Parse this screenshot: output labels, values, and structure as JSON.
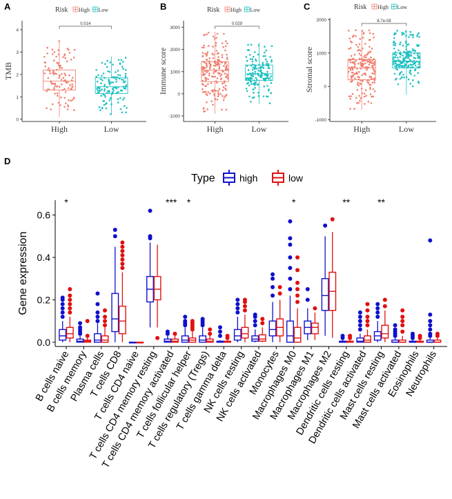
{
  "chart_data": [
    {
      "panel": "A",
      "type": "box",
      "legend_title": "Risk",
      "legend_items": [
        "High",
        "Low"
      ],
      "ylabel": "TMB",
      "categories": [
        "High",
        "Low"
      ],
      "ylim": [
        -0.1,
        4.4
      ],
      "yticks": [
        "0",
        "1",
        "2",
        "3",
        "4"
      ],
      "ytick_values": [
        0,
        1,
        2,
        3,
        4
      ],
      "colors": [
        "#f08070",
        "#20c0c0"
      ],
      "boxes": [
        {
          "q1": 1.3,
          "median": 1.7,
          "q3": 2.2,
          "whisker_low": 0.1,
          "whisker_high": 3.5
        },
        {
          "q1": 1.15,
          "median": 1.45,
          "q3": 1.85,
          "whisker_low": 0.2,
          "whisker_high": 2.8
        }
      ],
      "point_counts": [
        110,
        130
      ],
      "pvalue": "0.014"
    },
    {
      "panel": "B",
      "type": "box",
      "legend_title": "Risk",
      "legend_items": [
        "High",
        "Low"
      ],
      "ylabel": "Immune score",
      "categories": [
        "High",
        "Low"
      ],
      "ylim": [
        -1250,
        3300
      ],
      "yticks": [
        "-1000",
        "0",
        "1000",
        "2000",
        "3000"
      ],
      "ytick_values": [
        -1000,
        0,
        1000,
        2000,
        3000
      ],
      "colors": [
        "#f08070",
        "#20c0c0"
      ],
      "boxes": [
        {
          "q1": 550,
          "median": 1050,
          "q3": 1450,
          "whisker_low": -900,
          "whisker_high": 2800
        },
        {
          "q1": 600,
          "median": 900,
          "q3": 1300,
          "whisker_low": -450,
          "whisker_high": 2300
        }
      ],
      "point_counts": [
        200,
        160
      ],
      "pvalue": "0.029"
    },
    {
      "panel": "C",
      "type": "box",
      "legend_title": "Risk",
      "legend_items": [
        "High",
        "Low"
      ],
      "ylabel": "Stromal score",
      "categories": [
        "High",
        "Low"
      ],
      "ylim": [
        -1050,
        2050
      ],
      "yticks": [
        "-1000",
        "0",
        "1000",
        "2000"
      ],
      "ytick_values": [
        -1000,
        0,
        1000,
        2000
      ],
      "colors": [
        "#f08070",
        "#20c0c0"
      ],
      "boxes": [
        {
          "q1": 200,
          "median": 550,
          "q3": 800,
          "whisker_low": -700,
          "whisker_high": 1700
        },
        {
          "q1": 550,
          "median": 750,
          "q3": 1000,
          "whisker_low": -250,
          "whisker_high": 1700
        }
      ],
      "point_counts": [
        200,
        200
      ],
      "pvalue": "8.7e-08"
    },
    {
      "panel": "D",
      "type": "box",
      "legend_title": "Type",
      "legend_items": [
        "high",
        "low"
      ],
      "ylabel": "Gene expression",
      "ylim": [
        -0.02,
        0.67
      ],
      "yticks": [
        "0.0",
        "0.2",
        "0.4",
        "0.6"
      ],
      "ytick_values": [
        0,
        0.2,
        0.4,
        0.6
      ],
      "colors": [
        "#1010cc",
        "#e01010"
      ],
      "categories": [
        "B cells naive",
        "B cells memory",
        "Plasma cells",
        "T cells CD8",
        "T cells CD4 naive",
        "T cells CD4 memory resting",
        "T cells CD4 memory activated",
        "T cells follicular helper",
        "T cells regulatory (Tregs)",
        "T cells gamma delta",
        "NK cells resting",
        "NK cells activated",
        "Monocytes",
        "Macrophages M0",
        "Macrophages M1",
        "Macrophages M2",
        "Dendritic cells resting",
        "Dendritic cells activated",
        "Mast cells resting",
        "Mast cells activated",
        "Eosinophils",
        "Neutrophils"
      ],
      "significance": [
        "*",
        "",
        "",
        "",
        "",
        "",
        "***",
        "*",
        "",
        "",
        "",
        "",
        "",
        "*",
        "",
        "",
        "**",
        "",
        "**",
        "",
        "",
        ""
      ],
      "high": [
        {
          "q1": 0.01,
          "median": 0.03,
          "q3": 0.06,
          "whisker_low": 0,
          "whisker_high": 0.1,
          "outliers": [
            0.12,
            0.14,
            0.16,
            0.18,
            0.2,
            0.21
          ]
        },
        {
          "q1": 0,
          "median": 0.005,
          "q3": 0.015,
          "whisker_low": 0,
          "whisker_high": 0.03,
          "outliers": [
            0.04,
            0.05,
            0.06,
            0.07,
            0.09
          ]
        },
        {
          "q1": 0,
          "median": 0.01,
          "q3": 0.04,
          "whisker_low": 0,
          "whisker_high": 0.09,
          "outliers": [
            0.1,
            0.12,
            0.14,
            0.18,
            0.23
          ]
        },
        {
          "q1": 0.05,
          "median": 0.11,
          "q3": 0.23,
          "whisker_low": 0,
          "whisker_high": 0.45,
          "outliers": [
            0.5,
            0.53
          ]
        },
        {
          "q1": 0,
          "median": 0,
          "q3": 0,
          "whisker_low": 0,
          "whisker_high": 0,
          "outliers": []
        },
        {
          "q1": 0.19,
          "median": 0.25,
          "q3": 0.31,
          "whisker_low": 0.07,
          "whisker_high": 0.47,
          "outliers": [
            0.49,
            0.5,
            0.62
          ]
        },
        {
          "q1": 0,
          "median": 0.005,
          "q3": 0.015,
          "whisker_low": 0,
          "whisker_high": 0.03,
          "outliers": [
            0.04,
            0.05
          ]
        },
        {
          "q1": 0,
          "median": 0.01,
          "q3": 0.03,
          "whisker_low": 0,
          "whisker_high": 0.07,
          "outliers": [
            0.08,
            0.09,
            0.1,
            0.12
          ]
        },
        {
          "q1": 0,
          "median": 0.01,
          "q3": 0.03,
          "whisker_low": 0,
          "whisker_high": 0.07,
          "outliers": [
            0.08,
            0.09,
            0.1,
            0.11
          ]
        },
        {
          "q1": 0,
          "median": 0,
          "q3": 0.005,
          "whisker_low": 0,
          "whisker_high": 0.01,
          "outliers": [
            0.03,
            0.05,
            0.07
          ]
        },
        {
          "q1": 0.01,
          "median": 0.03,
          "q3": 0.06,
          "whisker_low": 0,
          "whisker_high": 0.12,
          "outliers": [
            0.14,
            0.16,
            0.18,
            0.2
          ]
        },
        {
          "q1": 0.005,
          "median": 0.015,
          "q3": 0.03,
          "whisker_low": 0,
          "whisker_high": 0.06,
          "outliers": [
            0.08,
            0.1,
            0.12,
            0.13
          ]
        },
        {
          "q1": 0.03,
          "median": 0.06,
          "q3": 0.1,
          "whisker_low": 0,
          "whisker_high": 0.19,
          "outliers": [
            0.22,
            0.26,
            0.3,
            0.32
          ]
        },
        {
          "q1": 0,
          "median": 0.03,
          "q3": 0.1,
          "whisker_low": 0,
          "whisker_high": 0.22,
          "outliers": [
            0.25,
            0.3,
            0.35,
            0.4,
            0.46,
            0.49,
            0.57
          ]
        },
        {
          "q1": 0.04,
          "median": 0.07,
          "q3": 0.1,
          "whisker_low": 0.01,
          "whisker_high": 0.16,
          "outliers": [
            0.2,
            0.25
          ]
        },
        {
          "q1": 0.15,
          "median": 0.22,
          "q3": 0.3,
          "whisker_low": 0.03,
          "whisker_high": 0.5,
          "outliers": [
            0.55
          ]
        },
        {
          "q1": 0,
          "median": 0,
          "q3": 0.005,
          "whisker_low": 0,
          "whisker_high": 0.01,
          "outliers": [
            0.02,
            0.03
          ]
        },
        {
          "q1": 0,
          "median": 0.005,
          "q3": 0.02,
          "whisker_low": 0,
          "whisker_high": 0.04,
          "outliers": [
            0.06,
            0.08,
            0.1,
            0.12,
            0.14
          ]
        },
        {
          "q1": 0.01,
          "median": 0.03,
          "q3": 0.05,
          "whisker_low": 0,
          "whisker_high": 0.1,
          "outliers": [
            0.12,
            0.14,
            0.16,
            0.18
          ]
        },
        {
          "q1": 0,
          "median": 0,
          "q3": 0.01,
          "whisker_low": 0,
          "whisker_high": 0.02,
          "outliers": [
            0.03,
            0.04,
            0.05,
            0.06,
            0.08
          ]
        },
        {
          "q1": 0,
          "median": 0,
          "q3": 0.005,
          "whisker_low": 0,
          "whisker_high": 0.01,
          "outliers": [
            0.02,
            0.03,
            0.04
          ]
        },
        {
          "q1": 0,
          "median": 0,
          "q3": 0.01,
          "whisker_low": 0,
          "whisker_high": 0.02,
          "outliers": [
            0.03,
            0.04,
            0.06,
            0.08,
            0.1,
            0.13,
            0.48
          ]
        }
      ],
      "low": [
        {
          "q1": 0.02,
          "median": 0.04,
          "q3": 0.07,
          "whisker_low": 0,
          "whisker_high": 0.12,
          "outliers": [
            0.14,
            0.16,
            0.18,
            0.2,
            0.22,
            0.25
          ]
        },
        {
          "q1": 0,
          "median": 0.005,
          "q3": 0.01,
          "whisker_low": 0,
          "whisker_high": 0.02,
          "outliers": [
            0.03,
            0.1
          ]
        },
        {
          "q1": 0,
          "median": 0.01,
          "q3": 0.03,
          "whisker_low": 0,
          "whisker_high": 0.07,
          "outliers": [
            0.08,
            0.1,
            0.12,
            0.15
          ]
        },
        {
          "q1": 0.04,
          "median": 0.1,
          "q3": 0.17,
          "whisker_low": 0,
          "whisker_high": 0.33,
          "outliers": [
            0.35,
            0.37,
            0.39,
            0.41,
            0.43,
            0.45,
            0.47
          ]
        },
        {
          "q1": 0,
          "median": 0,
          "q3": 0,
          "whisker_low": 0,
          "whisker_high": 0,
          "outliers": []
        },
        {
          "q1": 0.2,
          "median": 0.25,
          "q3": 0.31,
          "whisker_low": 0.07,
          "whisker_high": 0.46,
          "outliers": [
            0.02
          ]
        },
        {
          "q1": 0,
          "median": 0.005,
          "q3": 0.015,
          "whisker_low": 0,
          "whisker_high": 0.03,
          "outliers": [
            0.04
          ]
        },
        {
          "q1": 0,
          "median": 0.01,
          "q3": 0.02,
          "whisker_low": 0,
          "whisker_high": 0.05,
          "outliers": [
            0.06,
            0.07,
            0.08,
            0.09,
            0.1
          ]
        },
        {
          "q1": 0,
          "median": 0.005,
          "q3": 0.015,
          "whisker_low": 0,
          "whisker_high": 0.03,
          "outliers": [
            0.04,
            0.06
          ]
        },
        {
          "q1": 0,
          "median": 0,
          "q3": 0.005,
          "whisker_low": 0,
          "whisker_high": 0.01,
          "outliers": [
            0.02,
            0.03
          ]
        },
        {
          "q1": 0.02,
          "median": 0.04,
          "q3": 0.07,
          "whisker_low": 0,
          "whisker_high": 0.13,
          "outliers": [
            0.15,
            0.17,
            0.19,
            0.2
          ]
        },
        {
          "q1": 0.005,
          "median": 0.015,
          "q3": 0.035,
          "whisker_low": 0,
          "whisker_high": 0.07,
          "outliers": [
            0.09,
            0.11
          ]
        },
        {
          "q1": 0.03,
          "median": 0.07,
          "q3": 0.11,
          "whisker_low": 0,
          "whisker_high": 0.2,
          "outliers": [
            0.23,
            0.26
          ]
        },
        {
          "q1": 0,
          "median": 0.02,
          "q3": 0.07,
          "whisker_low": 0,
          "whisker_high": 0.16,
          "outliers": [
            0.19,
            0.22,
            0.25,
            0.28,
            0.34,
            0.4
          ]
        },
        {
          "q1": 0.04,
          "median": 0.07,
          "q3": 0.09,
          "whisker_low": 0.01,
          "whisker_high": 0.14,
          "outliers": [
            0.16
          ]
        },
        {
          "q1": 0.15,
          "median": 0.24,
          "q3": 0.33,
          "whisker_low": 0.02,
          "whisker_high": 0.52,
          "outliers": [
            0.58
          ]
        },
        {
          "q1": 0,
          "median": 0,
          "q3": 0.005,
          "whisker_low": 0,
          "whisker_high": 0.01,
          "outliers": [
            0.02,
            0.03
          ]
        },
        {
          "q1": 0,
          "median": 0.01,
          "q3": 0.03,
          "whisker_low": 0,
          "whisker_high": 0.06,
          "outliers": [
            0.08,
            0.1,
            0.12,
            0.15,
            0.18
          ]
        },
        {
          "q1": 0.02,
          "median": 0.04,
          "q3": 0.08,
          "whisker_low": 0,
          "whisker_high": 0.15,
          "outliers": [
            0.17,
            0.2
          ]
        },
        {
          "q1": 0,
          "median": 0,
          "q3": 0.01,
          "whisker_low": 0,
          "whisker_high": 0.03,
          "outliers": [
            0.05,
            0.08,
            0.1,
            0.12,
            0.15
          ]
        },
        {
          "q1": 0,
          "median": 0,
          "q3": 0.005,
          "whisker_low": 0,
          "whisker_high": 0.01,
          "outliers": [
            0.02,
            0.03
          ]
        },
        {
          "q1": 0,
          "median": 0,
          "q3": 0.01,
          "whisker_low": 0,
          "whisker_high": 0.02,
          "outliers": [
            0.03,
            0.04
          ]
        }
      ]
    }
  ]
}
